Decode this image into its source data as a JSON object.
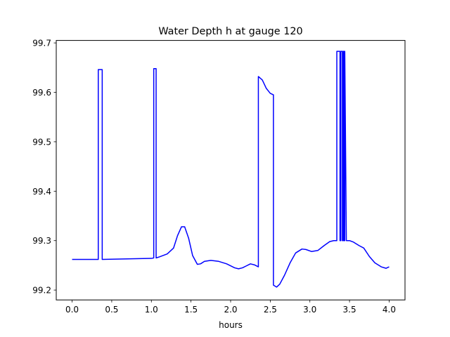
{
  "chart_data": {
    "type": "line",
    "title": "Water Depth h at gauge 120",
    "xlabel": "hours",
    "ylabel": "",
    "xlim": [
      -0.2,
      4.2
    ],
    "ylim": [
      99.18,
      99.705
    ],
    "xticks": [
      0.0,
      0.5,
      1.0,
      1.5,
      2.0,
      2.5,
      3.0,
      3.5,
      4.0
    ],
    "xtick_labels": [
      "0.0",
      "0.5",
      "1.0",
      "1.5",
      "2.0",
      "2.5",
      "3.0",
      "3.5",
      "4.0"
    ],
    "yticks": [
      99.2,
      99.3,
      99.4,
      99.5,
      99.6,
      99.7
    ],
    "ytick_labels": [
      "99.2",
      "99.3",
      "99.4",
      "99.5",
      "99.6",
      "99.7"
    ],
    "grid": false,
    "series": [
      {
        "color": "#0000ff",
        "x": [
          0.0,
          0.33,
          0.33,
          0.38,
          0.38,
          1.0,
          1.03,
          1.03,
          1.06,
          1.06,
          1.1,
          1.2,
          1.28,
          1.33,
          1.38,
          1.42,
          1.47,
          1.52,
          1.58,
          1.62,
          1.67,
          1.75,
          1.85,
          1.95,
          2.05,
          2.1,
          2.15,
          2.2,
          2.25,
          2.3,
          2.35,
          2.35,
          2.4,
          2.45,
          2.5,
          2.54,
          2.54,
          2.58,
          2.62,
          2.68,
          2.75,
          2.82,
          2.9,
          2.95,
          3.02,
          3.1,
          3.18,
          3.25,
          3.3,
          3.34,
          3.34,
          3.38,
          3.38,
          3.39,
          3.39,
          3.41,
          3.41,
          3.42,
          3.42,
          3.43,
          3.43,
          3.44,
          3.44,
          3.46,
          3.5,
          3.55,
          3.62,
          3.68,
          3.75,
          3.82,
          3.9,
          3.96,
          4.0
        ],
        "y": [
          99.262,
          99.262,
          99.646,
          99.646,
          99.262,
          99.264,
          99.265,
          99.648,
          99.648,
          99.265,
          99.267,
          99.273,
          99.285,
          99.31,
          99.328,
          99.328,
          99.305,
          99.27,
          99.252,
          99.253,
          99.258,
          99.26,
          99.258,
          99.253,
          99.245,
          99.243,
          99.245,
          99.249,
          99.253,
          99.251,
          99.247,
          99.632,
          99.625,
          99.608,
          99.598,
          99.595,
          99.21,
          99.206,
          99.212,
          99.23,
          99.255,
          99.275,
          99.283,
          99.282,
          99.278,
          99.28,
          99.29,
          99.298,
          99.3,
          99.3,
          99.683,
          99.683,
          99.3,
          99.3,
          99.683,
          99.683,
          99.3,
          99.3,
          99.683,
          99.683,
          99.3,
          99.3,
          99.683,
          99.3,
          99.3,
          99.297,
          99.29,
          99.285,
          99.268,
          99.255,
          99.247,
          99.244,
          99.247
        ]
      }
    ]
  }
}
